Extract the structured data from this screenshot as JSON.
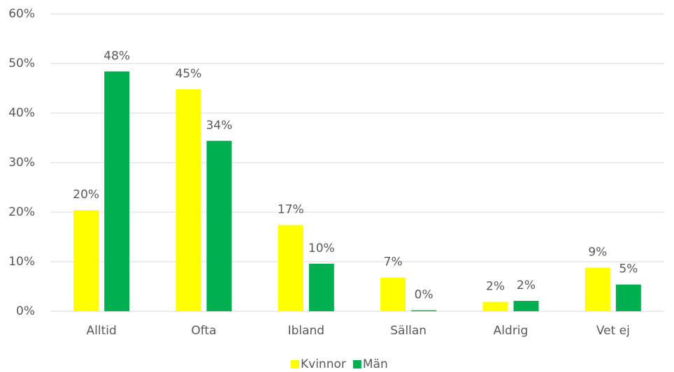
{
  "chart_data": {
    "type": "bar",
    "categories": [
      "Alltid",
      "Ofta",
      "Ibland",
      "Sällan",
      "Aldrig",
      "Vet ej"
    ],
    "series": [
      {
        "name": "Kvinnor",
        "color": "#ffff00",
        "values": [
          20.4,
          44.8,
          17.4,
          6.8,
          1.9,
          8.8
        ],
        "value_labels": [
          "20%",
          "45%",
          "17%",
          "7%",
          "2%",
          "9%"
        ]
      },
      {
        "name": "Män",
        "color": "#00b050",
        "values": [
          48.4,
          34.4,
          9.6,
          0.2,
          2.1,
          5.4
        ],
        "value_labels": [
          "48%",
          "34%",
          "10%",
          "0%",
          "2%",
          "5%"
        ]
      }
    ],
    "ylim": [
      0,
      60
    ],
    "yticks": [
      {
        "value": 0,
        "label": "0%"
      },
      {
        "value": 10,
        "label": "10%"
      },
      {
        "value": 20,
        "label": "20%"
      },
      {
        "value": 30,
        "label": "30%"
      },
      {
        "value": 40,
        "label": "40%"
      },
      {
        "value": 50,
        "label": "50%"
      },
      {
        "value": 60,
        "label": "60%"
      }
    ],
    "grid": true,
    "legend": "bottom"
  }
}
